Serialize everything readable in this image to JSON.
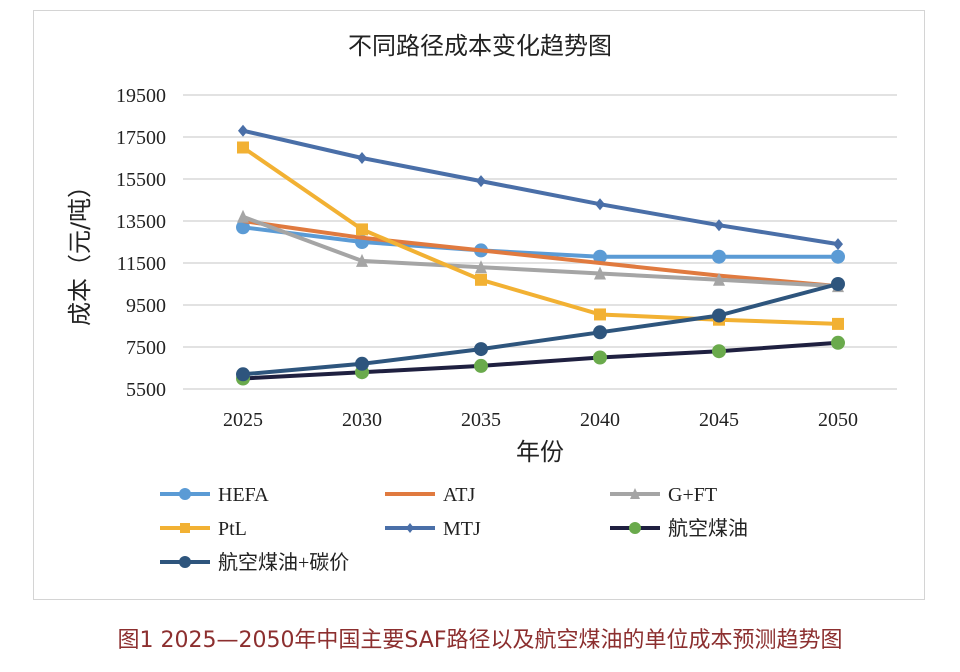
{
  "chart_data": {
    "type": "line",
    "title": "不同路径成本变化趋势图",
    "xlabel": "年份",
    "ylabel": "成本（元/吨）",
    "categories": [
      "2025",
      "2030",
      "2035",
      "2040",
      "2045",
      "2050"
    ],
    "ylim": [
      5500,
      19500
    ],
    "yticks": [
      "5500",
      "7500",
      "9500",
      "11500",
      "13500",
      "15500",
      "17500",
      "19500"
    ],
    "grid": true,
    "legend_position": "bottom",
    "series": [
      {
        "name": "HEFA",
        "color": "#5b9bd5",
        "marker": "circle",
        "values": [
          13200,
          12500,
          12100,
          11800,
          11800,
          11800
        ]
      },
      {
        "name": "ATJ",
        "color": "#e07a3f",
        "marker": "none",
        "values": [
          13500,
          12700,
          12100,
          11500,
          10900,
          10400
        ]
      },
      {
        "name": "G+FT",
        "color": "#a5a5a5",
        "marker": "triangle",
        "values": [
          13700,
          11600,
          11300,
          11000,
          10700,
          10400
        ]
      },
      {
        "name": "PtL",
        "color": "#f2b133",
        "marker": "square",
        "values": [
          17000,
          13100,
          10700,
          9050,
          8800,
          8600
        ]
      },
      {
        "name": "MTJ",
        "color": "#4a6fa8",
        "marker": "diamond",
        "values": [
          17800,
          16500,
          15400,
          14300,
          13300,
          12400
        ]
      },
      {
        "name": "航空煤油",
        "color": "#1f2040",
        "marker_color": "#6aaa4c",
        "marker": "circle",
        "values": [
          6000,
          6300,
          6600,
          7000,
          7300,
          7700
        ]
      },
      {
        "name": "航空煤油+碳价",
        "color": "#2e557d",
        "marker": "circle",
        "values": [
          6200,
          6700,
          7400,
          8200,
          9000,
          10500
        ]
      }
    ]
  },
  "caption": "图1 2025—2050年中国主要SAF路径以及航空煤油的单位成本预测趋势图"
}
